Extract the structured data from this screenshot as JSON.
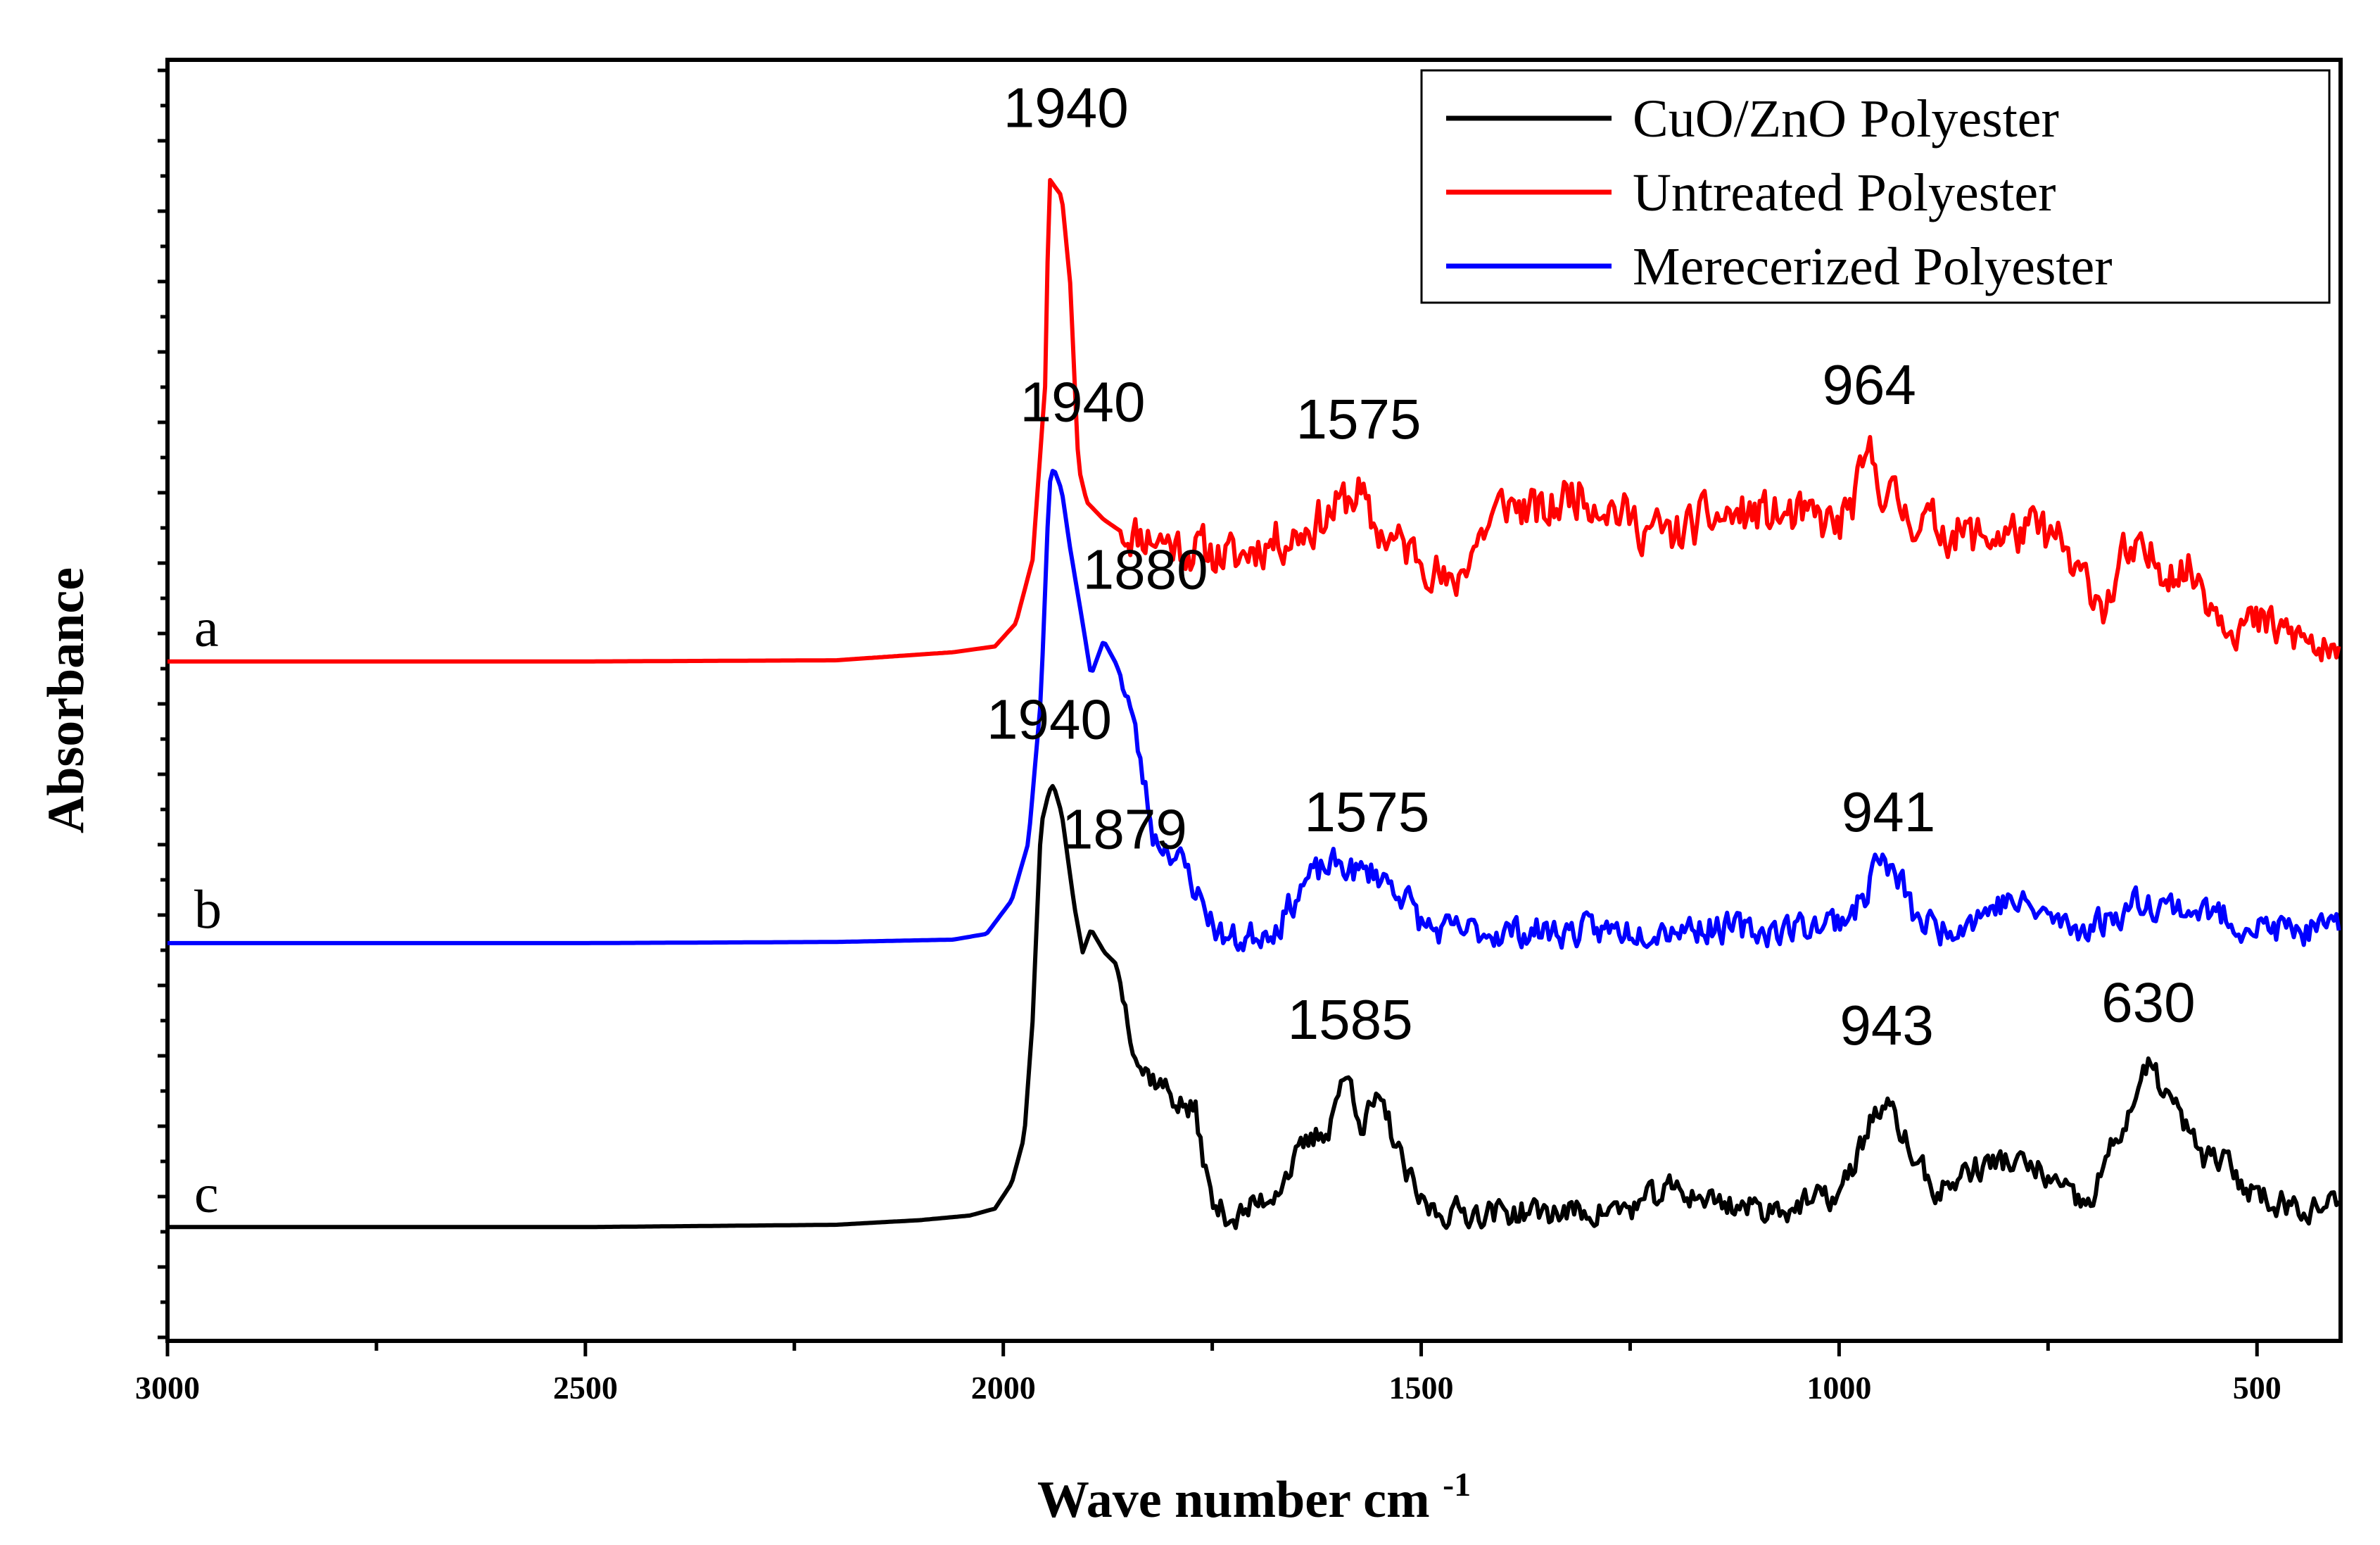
{
  "chart_data": {
    "type": "line",
    "title": "",
    "xlabel": "Wave number cm",
    "xlabel_superscript": "-1",
    "ylabel": "Absorbance",
    "xlim": [
      3000,
      400
    ],
    "ylim": [
      0,
      1
    ],
    "xticks": [
      3000,
      2500,
      2000,
      1500,
      1000,
      500
    ],
    "xtick_labels": [
      "3000",
      "2500",
      "2000",
      "1500",
      "1000",
      "500"
    ],
    "y_tick_labels_shown": false,
    "grid": false,
    "legend": {
      "placement": "top-right",
      "entries": [
        {
          "label": "CuO/ZnO Polyester",
          "color": "#000000"
        },
        {
          "label": "Untreated Polyester",
          "color": "#ff0000"
        },
        {
          "label": " Merecerized Polyester",
          "color": "#0000ff"
        }
      ]
    },
    "series": [
      {
        "name": "Untreated Polyester",
        "tag": "a",
        "color": "#ff0000",
        "noise": 0.03,
        "seed": 11,
        "points": [
          [
            3000,
            0.552
          ],
          [
            2500,
            0.552
          ],
          [
            2200,
            0.553
          ],
          [
            2060,
            0.56
          ],
          [
            2010,
            0.565
          ],
          [
            1985,
            0.585
          ],
          [
            1965,
            0.64
          ],
          [
            1950,
            0.79
          ],
          [
            1945,
            0.97
          ],
          [
            1940,
            0.965
          ],
          [
            1930,
            0.955
          ],
          [
            1920,
            0.88
          ],
          [
            1910,
            0.72
          ],
          [
            1900,
            0.69
          ],
          [
            1880,
            0.675
          ],
          [
            1860,
            0.665
          ],
          [
            1820,
            0.66
          ],
          [
            1780,
            0.65
          ],
          [
            1740,
            0.645
          ],
          [
            1720,
            0.64
          ],
          [
            1700,
            0.652
          ],
          [
            1650,
            0.662
          ],
          [
            1610,
            0.68
          ],
          [
            1575,
            0.7
          ],
          [
            1560,
            0.67
          ],
          [
            1520,
            0.65
          ],
          [
            1490,
            0.64
          ],
          [
            1465,
            0.61
          ],
          [
            1440,
            0.65
          ],
          [
            1400,
            0.69
          ],
          [
            1350,
            0.678
          ],
          [
            1320,
            0.7
          ],
          [
            1280,
            0.69
          ],
          [
            1240,
            0.67
          ],
          [
            1200,
            0.66
          ],
          [
            1160,
            0.675
          ],
          [
            1100,
            0.68
          ],
          [
            1050,
            0.676
          ],
          [
            1010,
            0.672
          ],
          [
            1000,
            0.668
          ],
          [
            980,
            0.695
          ],
          [
            964,
            0.73
          ],
          [
            945,
            0.7
          ],
          [
            920,
            0.68
          ],
          [
            880,
            0.668
          ],
          [
            840,
            0.66
          ],
          [
            800,
            0.662
          ],
          [
            760,
            0.665
          ],
          [
            730,
            0.65
          ],
          [
            720,
            0.625
          ],
          [
            700,
            0.62
          ],
          [
            680,
            0.6
          ],
          [
            660,
            0.64
          ],
          [
            630,
            0.64
          ],
          [
            600,
            0.635
          ],
          [
            570,
            0.625
          ],
          [
            550,
            0.6
          ],
          [
            520,
            0.585
          ],
          [
            480,
            0.58
          ],
          [
            440,
            0.57
          ],
          [
            400,
            0.545
          ]
        ]
      },
      {
        "name": " Merecerized Polyester",
        "tag": "b",
        "color": "#0000ff",
        "noise": 0.02,
        "seed": 23,
        "points": [
          [
            3000,
            0.308
          ],
          [
            2500,
            0.308
          ],
          [
            2200,
            0.309
          ],
          [
            2060,
            0.311
          ],
          [
            2020,
            0.316
          ],
          [
            1990,
            0.345
          ],
          [
            1970,
            0.395
          ],
          [
            1955,
            0.52
          ],
          [
            1945,
            0.705
          ],
          [
            1940,
            0.72
          ],
          [
            1930,
            0.7
          ],
          [
            1920,
            0.65
          ],
          [
            1905,
            0.585
          ],
          [
            1895,
            0.54
          ],
          [
            1880,
            0.57
          ],
          [
            1865,
            0.55
          ],
          [
            1850,
            0.52
          ],
          [
            1835,
            0.46
          ],
          [
            1820,
            0.4
          ],
          [
            1800,
            0.39
          ],
          [
            1780,
            0.37
          ],
          [
            1760,
            0.34
          ],
          [
            1740,
            0.315
          ],
          [
            1720,
            0.31
          ],
          [
            1700,
            0.315
          ],
          [
            1670,
            0.325
          ],
          [
            1640,
            0.36
          ],
          [
            1610,
            0.375
          ],
          [
            1590,
            0.375
          ],
          [
            1575,
            0.368
          ],
          [
            1555,
            0.37
          ],
          [
            1520,
            0.35
          ],
          [
            1500,
            0.325
          ],
          [
            1480,
            0.318
          ],
          [
            1400,
            0.318
          ],
          [
            1300,
            0.318
          ],
          [
            1200,
            0.322
          ],
          [
            1150,
            0.322
          ],
          [
            1100,
            0.318
          ],
          [
            1050,
            0.322
          ],
          [
            1000,
            0.328
          ],
          [
            970,
            0.345
          ],
          [
            955,
            0.385
          ],
          [
            941,
            0.37
          ],
          [
            925,
            0.36
          ],
          [
            910,
            0.33
          ],
          [
            880,
            0.32
          ],
          [
            840,
            0.33
          ],
          [
            800,
            0.345
          ],
          [
            760,
            0.335
          ],
          [
            720,
            0.32
          ],
          [
            680,
            0.328
          ],
          [
            640,
            0.345
          ],
          [
            600,
            0.34
          ],
          [
            560,
            0.335
          ],
          [
            520,
            0.325
          ],
          [
            480,
            0.32
          ],
          [
            440,
            0.318
          ],
          [
            400,
            0.318
          ]
        ]
      },
      {
        "name": "CuO/ZnO Polyester",
        "tag": "c",
        "color": "#000000",
        "noise": 0.018,
        "seed": 37,
        "points": [
          [
            3000,
            0.062
          ],
          [
            2500,
            0.062
          ],
          [
            2200,
            0.064
          ],
          [
            2100,
            0.068
          ],
          [
            2040,
            0.072
          ],
          [
            2010,
            0.078
          ],
          [
            1990,
            0.1
          ],
          [
            1975,
            0.14
          ],
          [
            1965,
            0.24
          ],
          [
            1955,
            0.41
          ],
          [
            1945,
            0.44
          ],
          [
            1940,
            0.445
          ],
          [
            1930,
            0.42
          ],
          [
            1915,
            0.34
          ],
          [
            1905,
            0.3
          ],
          [
            1895,
            0.32
          ],
          [
            1879,
            0.3
          ],
          [
            1865,
            0.29
          ],
          [
            1850,
            0.24
          ],
          [
            1835,
            0.2
          ],
          [
            1810,
            0.185
          ],
          [
            1790,
            0.17
          ],
          [
            1770,
            0.16
          ],
          [
            1750,
            0.08
          ],
          [
            1720,
            0.07
          ],
          [
            1680,
            0.09
          ],
          [
            1640,
            0.13
          ],
          [
            1610,
            0.15
          ],
          [
            1600,
            0.18
          ],
          [
            1585,
            0.19
          ],
          [
            1570,
            0.15
          ],
          [
            1555,
            0.17
          ],
          [
            1540,
            0.155
          ],
          [
            1520,
            0.11
          ],
          [
            1500,
            0.082
          ],
          [
            1480,
            0.075
          ],
          [
            1400,
            0.075
          ],
          [
            1300,
            0.075
          ],
          [
            1250,
            0.078
          ],
          [
            1200,
            0.095
          ],
          [
            1150,
            0.085
          ],
          [
            1100,
            0.078
          ],
          [
            1050,
            0.08
          ],
          [
            1000,
            0.09
          ],
          [
            985,
            0.11
          ],
          [
            960,
            0.16
          ],
          [
            943,
            0.165
          ],
          [
            925,
            0.145
          ],
          [
            910,
            0.12
          ],
          [
            880,
            0.09
          ],
          [
            850,
            0.11
          ],
          [
            800,
            0.12
          ],
          [
            760,
            0.11
          ],
          [
            720,
            0.085
          ],
          [
            700,
            0.08
          ],
          [
            680,
            0.12
          ],
          [
            660,
            0.15
          ],
          [
            630,
            0.2
          ],
          [
            605,
            0.175
          ],
          [
            580,
            0.14
          ],
          [
            560,
            0.12
          ],
          [
            540,
            0.12
          ],
          [
            520,
            0.1
          ],
          [
            480,
            0.085
          ],
          [
            440,
            0.08
          ],
          [
            400,
            0.08
          ]
        ]
      }
    ],
    "annotations": [
      {
        "text": "1940",
        "x": 1925,
        "y": 1.015
      },
      {
        "text": "1575",
        "x": 1575,
        "y": 0.745
      },
      {
        "text": "964",
        "x": 964,
        "y": 0.775
      },
      {
        "text": "1940",
        "x": 1905,
        "y": 0.76
      },
      {
        "text": "1880",
        "x": 1830,
        "y": 0.615
      },
      {
        "text": "1575",
        "x": 1565,
        "y": 0.405
      },
      {
        "text": "941",
        "x": 941,
        "y": 0.405
      },
      {
        "text": "1940",
        "x": 1945,
        "y": 0.485
      },
      {
        "text": "1879",
        "x": 1855,
        "y": 0.39
      },
      {
        "text": "1585",
        "x": 1585,
        "y": 0.225
      },
      {
        "text": "943",
        "x": 943,
        "y": 0.22
      },
      {
        "text": "630",
        "x": 630,
        "y": 0.24
      }
    ]
  }
}
